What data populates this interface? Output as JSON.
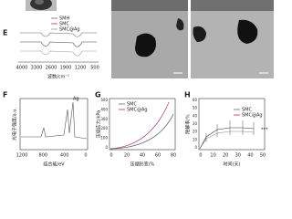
{
  "panels": [
    {
      "label": "E",
      "legend": [
        "SMH",
        "SMC",
        "SMC@Ag"
      ],
      "xticks": [
        "4000",
        "3300",
        "2600",
        "1900",
        "1200",
        "500"
      ],
      "xlabel": "波数/cm⁻¹"
    },
    {
      "label": "F",
      "ylabel": "光电子强度/a.u.",
      "xticks": [
        "1200",
        "800",
        "400",
        "0"
      ],
      "xlabel": "结合能/eV",
      "annotation": "Ag"
    },
    {
      "label": "G",
      "ylabel": "压缩应力/kPa",
      "legend": [
        "SMC",
        "SMC@Ag"
      ],
      "yticks": [
        "500",
        "400",
        "300",
        "200",
        "100",
        "0"
      ],
      "xticks": [
        "0",
        "20",
        "40",
        "60",
        "80"
      ],
      "xlabel": "压缩形变/%"
    },
    {
      "label": "H",
      "ylabel": "降解率/%",
      "legend": [
        "SMC",
        "SMC@Ag"
      ],
      "yticks": [
        "60",
        "50",
        "40",
        "30",
        "20",
        "10",
        "0"
      ],
      "xticks": [
        "0",
        "10",
        "20",
        "30",
        "40",
        "50"
      ],
      "xlabel": "时间(天)",
      "annotation": "***"
    }
  ]
}
